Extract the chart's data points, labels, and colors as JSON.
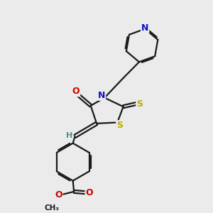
{
  "bg_color": "#ebebeb",
  "bond_color": "#1a1a1a",
  "atom_colors": {
    "N": "#1010cc",
    "O": "#cc0000",
    "S": "#bbaa00",
    "H": "#4a9090",
    "C": "#1a1a1a"
  },
  "line_width": 1.6,
  "fig_size": [
    3.0,
    3.0
  ],
  "dpi": 100
}
